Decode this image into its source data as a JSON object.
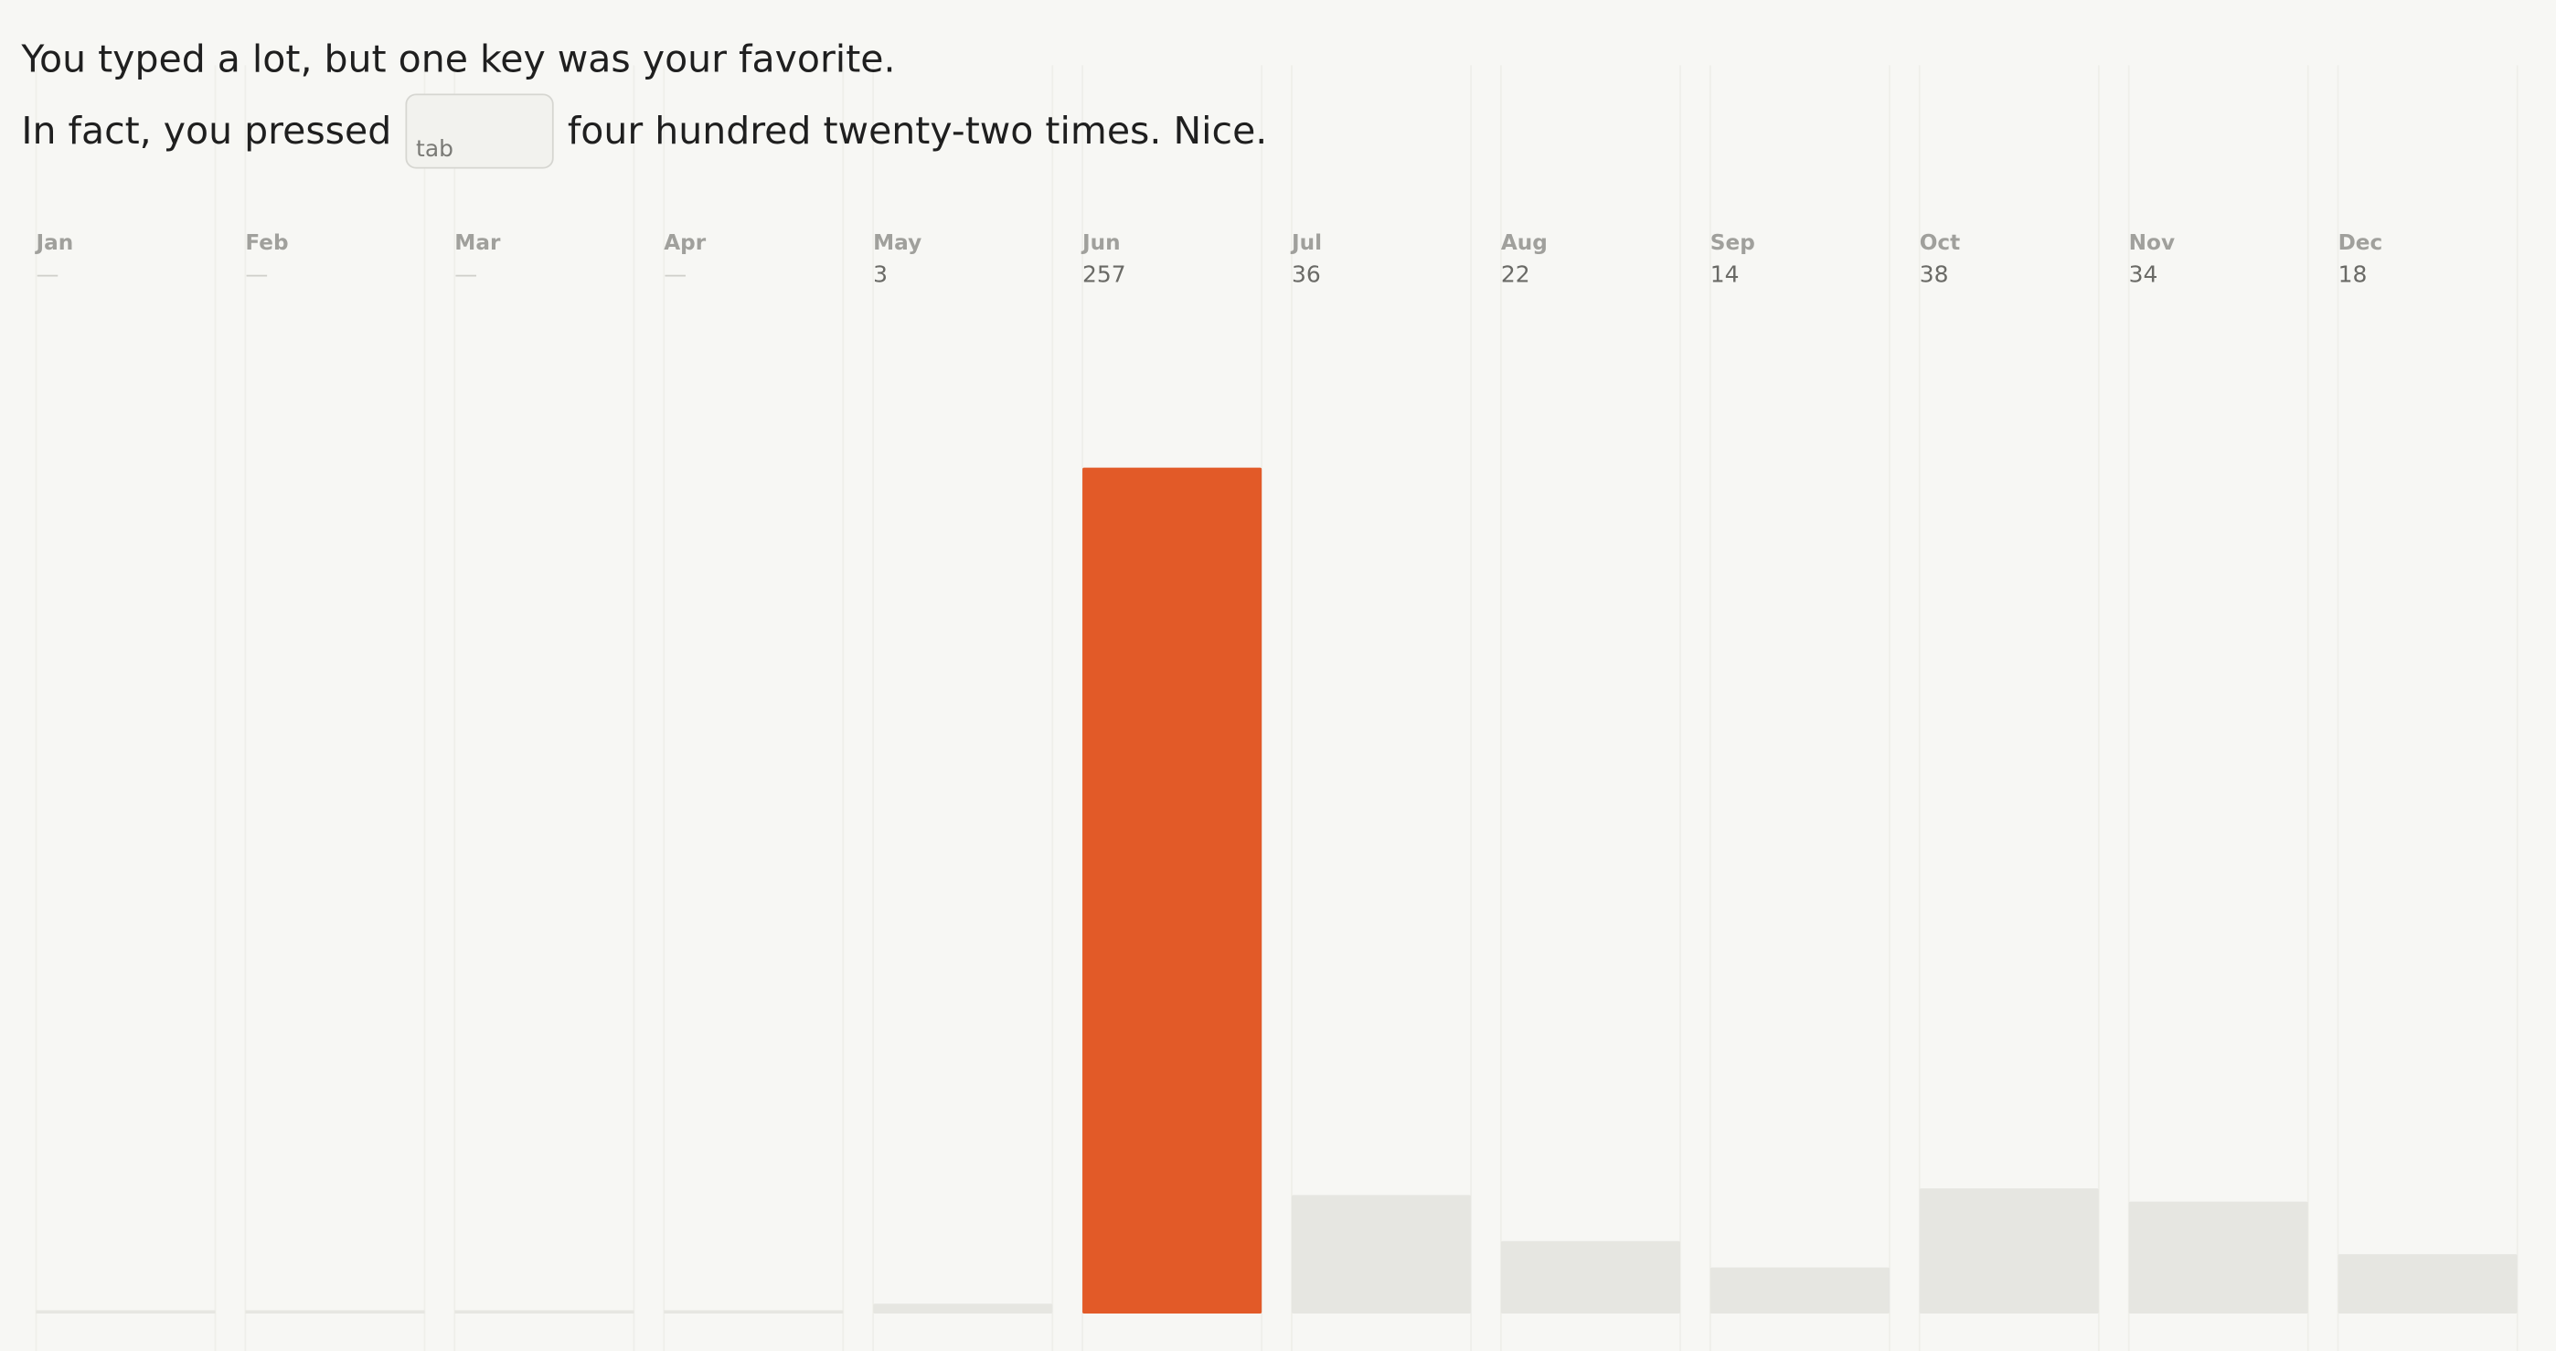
{
  "header": {
    "line1": "You typed a lot, but one key was your favorite.",
    "line2_before": "In fact, you pressed",
    "key": "tab",
    "line2_after": "four hundred twenty-two times. Nice."
  },
  "chart_data": {
    "type": "bar",
    "categories": [
      "Jan",
      "Feb",
      "Mar",
      "Apr",
      "May",
      "Jun",
      "Jul",
      "Aug",
      "Sep",
      "Oct",
      "Nov",
      "Dec"
    ],
    "values": [
      null,
      null,
      null,
      null,
      3,
      257,
      36,
      22,
      14,
      38,
      34,
      18
    ],
    "value_labels": [
      "—",
      "—",
      "—",
      "—",
      "3",
      "257",
      "36",
      "22",
      "14",
      "38",
      "34",
      "18"
    ],
    "colors": [
      "#e6e6e1",
      "#e6e6e1",
      "#e6e6e1",
      "#e6e6e1",
      "#e6e6e1",
      "#e25a28",
      "#e6e6e1",
      "#e6e6e1",
      "#e6e6e1",
      "#e6e6e1",
      "#e6e6e1",
      "#e6e6e1"
    ]
  }
}
